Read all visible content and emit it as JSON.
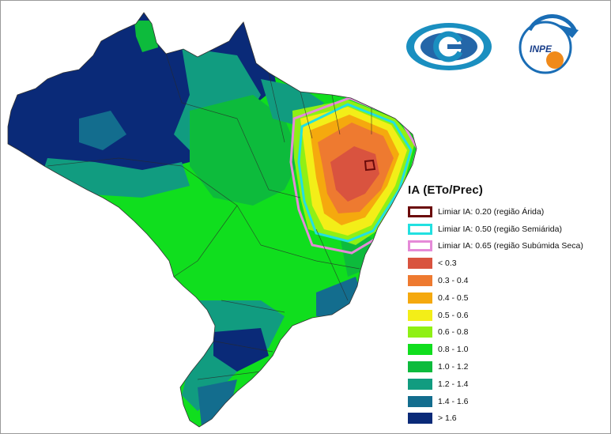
{
  "legend": {
    "title": "IA (ETo/Prec)",
    "thresholds": [
      {
        "label": "Limiar IA: 0.20 (região Árida)",
        "color": "#6b0a0a"
      },
      {
        "label": "Limiar IA: 0.50 (região Semiárida)",
        "color": "#22e0e0"
      },
      {
        "label": "Limiar IA: 0.65 (região Subúmida Seca)",
        "color": "#e58ad8"
      }
    ],
    "classes": [
      {
        "label": "< 0.3",
        "color": "#d9533f"
      },
      {
        "label": "0.3 - 0.4",
        "color": "#ee7a30"
      },
      {
        "label": "0.4 - 0.5",
        "color": "#f5a90e"
      },
      {
        "label": "0.5 - 0.6",
        "color": "#f3ee18"
      },
      {
        "label": "0.6 - 0.8",
        "color": "#8ff015"
      },
      {
        "label": "0.8 - 1.0",
        "color": "#10de1e"
      },
      {
        "label": "1.0 - 1.2",
        "color": "#0dbb3c"
      },
      {
        "label": "1.2 - 1.4",
        "color": "#119c80"
      },
      {
        "label": "1.4 - 1.6",
        "color": "#136d8e"
      },
      {
        "label": "> 1.6",
        "color": "#0a2a78"
      }
    ]
  },
  "logos": {
    "inpe_text": "INPE"
  }
}
